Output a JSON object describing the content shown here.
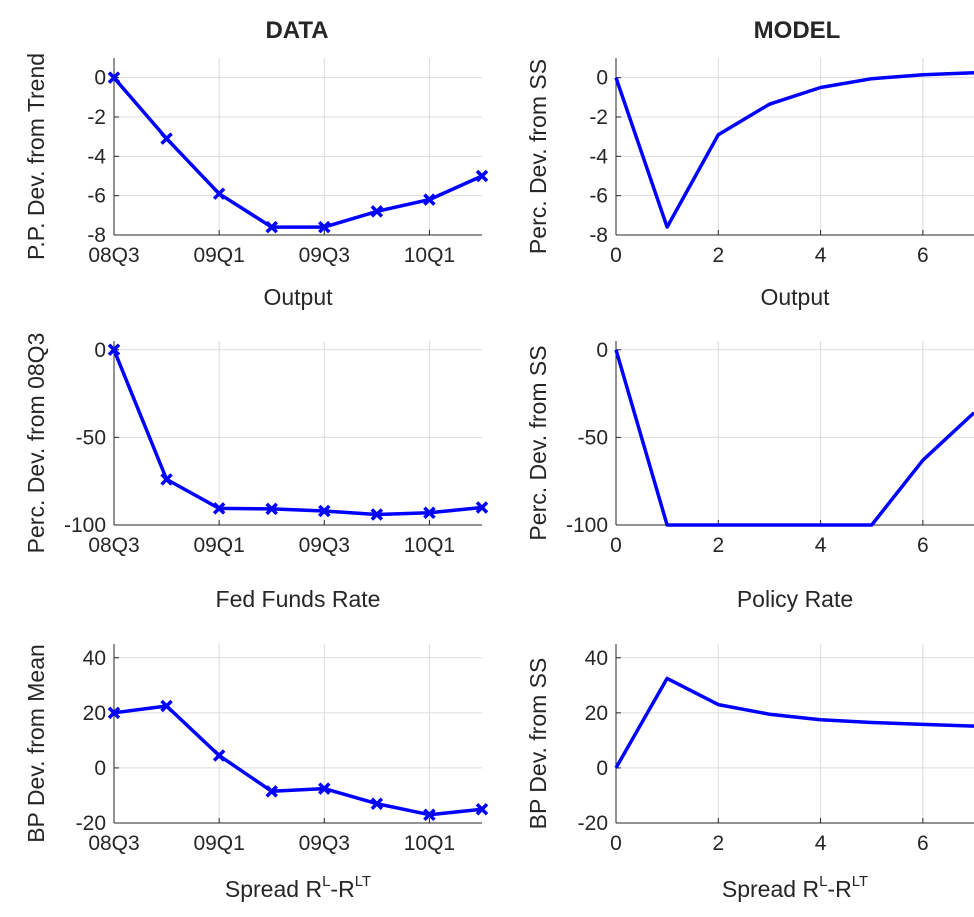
{
  "column_titles": {
    "left": "DATA",
    "right": "MODEL"
  },
  "chart_data": [
    {
      "id": "data-output",
      "type": "line",
      "column": "left",
      "title": "",
      "xlabel": "Output",
      "ylabel": "P.P. Dev. from Trend",
      "x": [
        0,
        1,
        2,
        3,
        4,
        5,
        6,
        7
      ],
      "x_ticks": [
        0,
        2,
        4,
        6
      ],
      "x_tick_labels": [
        "08Q3",
        "09Q1",
        "09Q3",
        "10Q1"
      ],
      "xlim": [
        0,
        7
      ],
      "y_ticks": [
        -8,
        -6,
        -4,
        -2,
        0
      ],
      "ylim": [
        -8,
        1
      ],
      "markers": true,
      "series": [
        {
          "values": [
            0,
            -3.1,
            -5.9,
            -7.6,
            -7.6,
            -6.8,
            -6.2,
            -5.0
          ]
        }
      ],
      "grid": true
    },
    {
      "id": "model-output",
      "type": "line",
      "column": "right",
      "title": "",
      "xlabel": "Output",
      "ylabel": "Perc. Dev. from SS",
      "x": [
        0,
        1,
        2,
        3,
        4,
        5,
        6,
        7
      ],
      "x_ticks": [
        0,
        2,
        4,
        6
      ],
      "x_tick_labels": [
        "0",
        "2",
        "4",
        "6"
      ],
      "xlim": [
        0,
        7
      ],
      "y_ticks": [
        -8,
        -6,
        -4,
        -2,
        0
      ],
      "ylim": [
        -8,
        1
      ],
      "markers": false,
      "series": [
        {
          "values": [
            0,
            -7.6,
            -2.9,
            -1.35,
            -0.5,
            -0.05,
            0.15,
            0.25
          ]
        }
      ],
      "grid": true
    },
    {
      "id": "data-fedfunds",
      "type": "line",
      "column": "left",
      "title": "",
      "xlabel": "Fed Funds Rate",
      "ylabel": "Perc. Dev. from 08Q3",
      "x": [
        0,
        1,
        2,
        3,
        4,
        5,
        6,
        7
      ],
      "x_ticks": [
        0,
        2,
        4,
        6
      ],
      "x_tick_labels": [
        "08Q3",
        "09Q1",
        "09Q3",
        "10Q1"
      ],
      "xlim": [
        0,
        7
      ],
      "y_ticks": [
        -100,
        -50,
        0
      ],
      "ylim": [
        -100,
        5
      ],
      "markers": true,
      "series": [
        {
          "values": [
            0,
            -74,
            -90.5,
            -90.8,
            -92,
            -94,
            -93,
            -90
          ]
        }
      ],
      "grid": true
    },
    {
      "id": "model-policy",
      "type": "line",
      "column": "right",
      "title": "",
      "xlabel": "Policy Rate",
      "ylabel": "Perc. Dev. from SS",
      "x": [
        0,
        1,
        2,
        3,
        4,
        5,
        6,
        7
      ],
      "x_ticks": [
        0,
        2,
        4,
        6
      ],
      "x_tick_labels": [
        "0",
        "2",
        "4",
        "6"
      ],
      "xlim": [
        0,
        7
      ],
      "y_ticks": [
        -100,
        -50,
        0
      ],
      "ylim": [
        -100,
        5
      ],
      "markers": false,
      "series": [
        {
          "values": [
            0,
            -100,
            -100,
            -100,
            -100,
            -100,
            -63,
            -36
          ]
        }
      ],
      "grid": true
    },
    {
      "id": "data-spread",
      "type": "line",
      "column": "left",
      "title": "",
      "xlabel": "Spread R",
      "xlabel_sup1": "L",
      "xlabel_mid": "-R",
      "xlabel_sup2": "LT",
      "ylabel": "BP Dev. from Mean",
      "x": [
        0,
        1,
        2,
        3,
        4,
        5,
        6,
        7
      ],
      "x_ticks": [
        0,
        2,
        4,
        6
      ],
      "x_tick_labels": [
        "08Q3",
        "09Q1",
        "09Q3",
        "10Q1"
      ],
      "xlim": [
        0,
        7
      ],
      "y_ticks": [
        -20,
        0,
        20,
        40
      ],
      "ylim": [
        -20,
        45
      ],
      "markers": true,
      "series": [
        {
          "values": [
            20,
            22.5,
            4.5,
            -8.5,
            -7.5,
            -13,
            -17,
            -15
          ]
        }
      ],
      "grid": true
    },
    {
      "id": "model-spread",
      "type": "line",
      "column": "right",
      "title": "",
      "xlabel": "Spread R",
      "xlabel_sup1": "L",
      "xlabel_mid": "-R",
      "xlabel_sup2": "LT",
      "ylabel": "BP Dev. from SS",
      "x": [
        0,
        1,
        2,
        3,
        4,
        5,
        6,
        7
      ],
      "x_ticks": [
        0,
        2,
        4,
        6
      ],
      "x_tick_labels": [
        "0",
        "2",
        "4",
        "6"
      ],
      "xlim": [
        0,
        7
      ],
      "y_ticks": [
        -20,
        0,
        20,
        40
      ],
      "ylim": [
        -20,
        45
      ],
      "markers": false,
      "series": [
        {
          "values": [
            0,
            32.5,
            23,
            19.5,
            17.5,
            16.5,
            15.8,
            15.2
          ]
        }
      ],
      "grid": true
    }
  ],
  "colors": {
    "series": "#0000ff",
    "axis": "#262626",
    "grid": "#dcdcdc"
  }
}
